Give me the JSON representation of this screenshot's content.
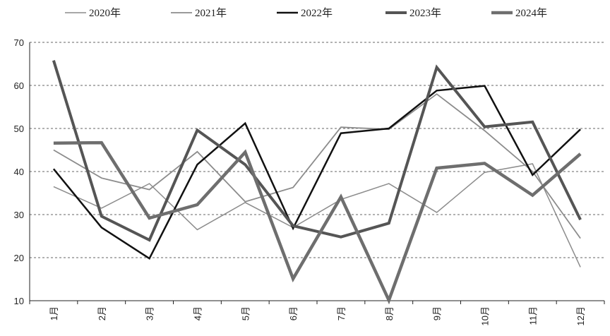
{
  "chart_data": {
    "type": "line",
    "categories": [
      "1月",
      "2月",
      "3月",
      "4月",
      "5月",
      "6月",
      "7月",
      "8月",
      "9月",
      "10月",
      "11月",
      "12月"
    ],
    "ylim": [
      10,
      70
    ],
    "yticks": [
      10,
      20,
      30,
      40,
      50,
      60,
      70
    ],
    "grid": "horizontal-dashed",
    "legend_position": "top",
    "series": [
      {
        "name": "2020年",
        "color": "#8c8c8c",
        "width": 1.5,
        "values": [
          36.5,
          31.5,
          37.2,
          26.5,
          32.8,
          27.0,
          33.5,
          37.2,
          30.5,
          39.8,
          41.8,
          17.8
        ]
      },
      {
        "name": "2021年",
        "color": "#8c8c8c",
        "width": 1.8,
        "values": [
          45.0,
          38.5,
          35.8,
          44.6,
          33.0,
          36.3,
          50.3,
          49.8,
          58.0,
          49.5,
          40.0,
          24.5
        ]
      },
      {
        "name": "2022年",
        "color": "#111111",
        "width": 2.5,
        "values": [
          40.6,
          27.0,
          19.8,
          41.6,
          51.2,
          26.8,
          48.9,
          50.0,
          58.8,
          59.9,
          39.2,
          49.8
        ]
      },
      {
        "name": "2023年",
        "color": "#555555",
        "width": 4,
        "values": [
          65.8,
          29.6,
          24.1,
          49.6,
          41.6,
          27.4,
          24.8,
          28.0,
          64.2,
          50.4,
          51.5,
          28.8
        ]
      },
      {
        "name": "2024年",
        "color": "#6e6e6e",
        "width": 4.5,
        "values": [
          46.6,
          46.7,
          29.2,
          32.3,
          44.5,
          15.1,
          34.1,
          10.1,
          40.8,
          41.9,
          34.5,
          44.1
        ]
      }
    ]
  }
}
